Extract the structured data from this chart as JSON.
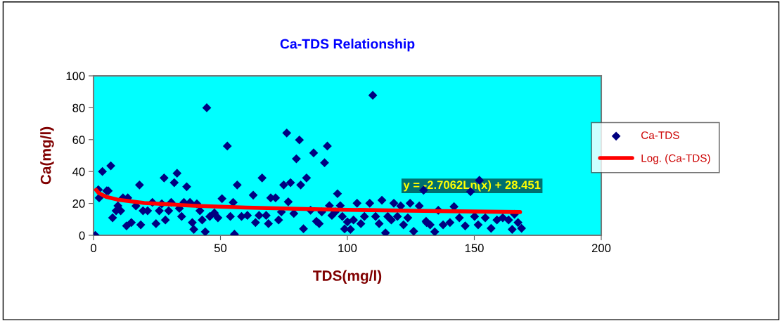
{
  "chart_data": {
    "type": "scatter",
    "title": "Ca-TDS Relationship",
    "xlabel": "TDS(mg/l)",
    "ylabel": "Ca(mg/l)",
    "xlim": [
      0,
      200
    ],
    "xticks": [
      0,
      50,
      100,
      150,
      200
    ],
    "ylim": [
      0,
      100
    ],
    "yticks": [
      0,
      20,
      40,
      60,
      80,
      100
    ],
    "grid": false,
    "legend": "right",
    "annotations": [
      "y = -2.7062Ln(x) + 28.451"
    ],
    "series": [
      {
        "name": "Ca-TDS",
        "marker": "diamond",
        "color": "#000080",
        "x": [
          0.7,
          1.9,
          2.2,
          3.5,
          5.2,
          5.8,
          6.8,
          7.5,
          8.9,
          9.6,
          10.7,
          11.6,
          13,
          13.5,
          14.9,
          16.7,
          18.1,
          18.6,
          19.5,
          21.3,
          23.2,
          24.6,
          25.9,
          26.9,
          27.8,
          28.3,
          29.6,
          30.6,
          31.8,
          32.9,
          33.8,
          34.7,
          35.6,
          36.7,
          38,
          38.9,
          39.5,
          40.7,
          41.9,
          42.8,
          44,
          44.6,
          45.8,
          47.6,
          49,
          50.6,
          52.7,
          53.9,
          55,
          55.5,
          56.6,
          58.3,
          60.6,
          62.9,
          63.8,
          65.2,
          66.4,
          68,
          68.9,
          69.8,
          71.7,
          72.9,
          74,
          74.9,
          76.1,
          76.7,
          77.6,
          78.9,
          79.9,
          81.1,
          81.6,
          82.7,
          83.9,
          85.5,
          86.7,
          87.8,
          88.9,
          89.9,
          91,
          92.1,
          92.9,
          93.9,
          95.2,
          96.1,
          97.2,
          98,
          98.9,
          100,
          101.2,
          102.4,
          103.8,
          105.3,
          106.7,
          108.8,
          110,
          111.1,
          112.5,
          113.6,
          115,
          115.9,
          117.3,
          118.3,
          119.7,
          121,
          122.1,
          123.8,
          124.7,
          126.1,
          128.3,
          130,
          131,
          132.6,
          131.2,
          134.4,
          135.8,
          137.7,
          140.4,
          142,
          144.1,
          146.4,
          148.5,
          150.1,
          151.5,
          152,
          154.3,
          156.6,
          158.9,
          161.2,
          163.5,
          164.9,
          165.8,
          167.2,
          168.6
        ],
        "values": [
          0,
          28.6,
          23.5,
          40,
          27.9,
          27.9,
          43.6,
          11,
          15.4,
          18.5,
          15.4,
          23.5,
          5.9,
          23.5,
          8,
          18.4,
          31.6,
          6.6,
          15.4,
          15.4,
          20.6,
          7.3,
          15.4,
          19.8,
          36,
          9.6,
          15.4,
          20.6,
          33,
          38.9,
          16.9,
          11.8,
          20.6,
          30.5,
          20.6,
          8,
          3.7,
          19.8,
          15.4,
          9.6,
          2.2,
          80,
          11.8,
          14,
          11,
          23,
          56,
          11.8,
          20.6,
          0.7,
          31.6,
          11.8,
          12.5,
          25.2,
          8,
          12.5,
          36,
          12.5,
          7.3,
          23.5,
          23.5,
          9.6,
          14.7,
          31.6,
          64.2,
          21,
          33,
          13.7,
          48,
          59.8,
          31.6,
          4.1,
          36,
          15.7,
          51.7,
          8.8,
          7.3,
          14.7,
          45.5,
          56,
          18.6,
          12.5,
          14.7,
          26.1,
          18.6,
          11.8,
          4,
          8.4,
          3.7,
          9.6,
          20.1,
          7.3,
          11.8,
          20.1,
          87.8,
          11.8,
          7.3,
          22,
          1.5,
          11.8,
          9.6,
          20.1,
          11.8,
          18.4,
          6.6,
          11,
          20.1,
          2.5,
          18.4,
          28.2,
          8.8,
          6.6,
          8,
          2.2,
          15.7,
          6.6,
          8,
          18,
          11,
          5.9,
          27.4,
          11.8,
          6.6,
          34.5,
          11,
          4.4,
          9.6,
          11,
          9.6,
          3.7,
          13.2,
          8,
          4.4
        ]
      },
      {
        "name": "Log. (Ca-TDS)",
        "type": "line",
        "marker": "none",
        "line_style": "solid",
        "color": "#ff0000",
        "x": [
          1,
          2,
          5,
          10,
          20,
          40,
          60,
          80,
          100,
          130,
          168
        ],
        "values": [
          28.5,
          26.6,
          24.1,
          22.2,
          20.3,
          18.5,
          17.4,
          16.6,
          16.0,
          15.3,
          14.6
        ]
      }
    ]
  }
}
